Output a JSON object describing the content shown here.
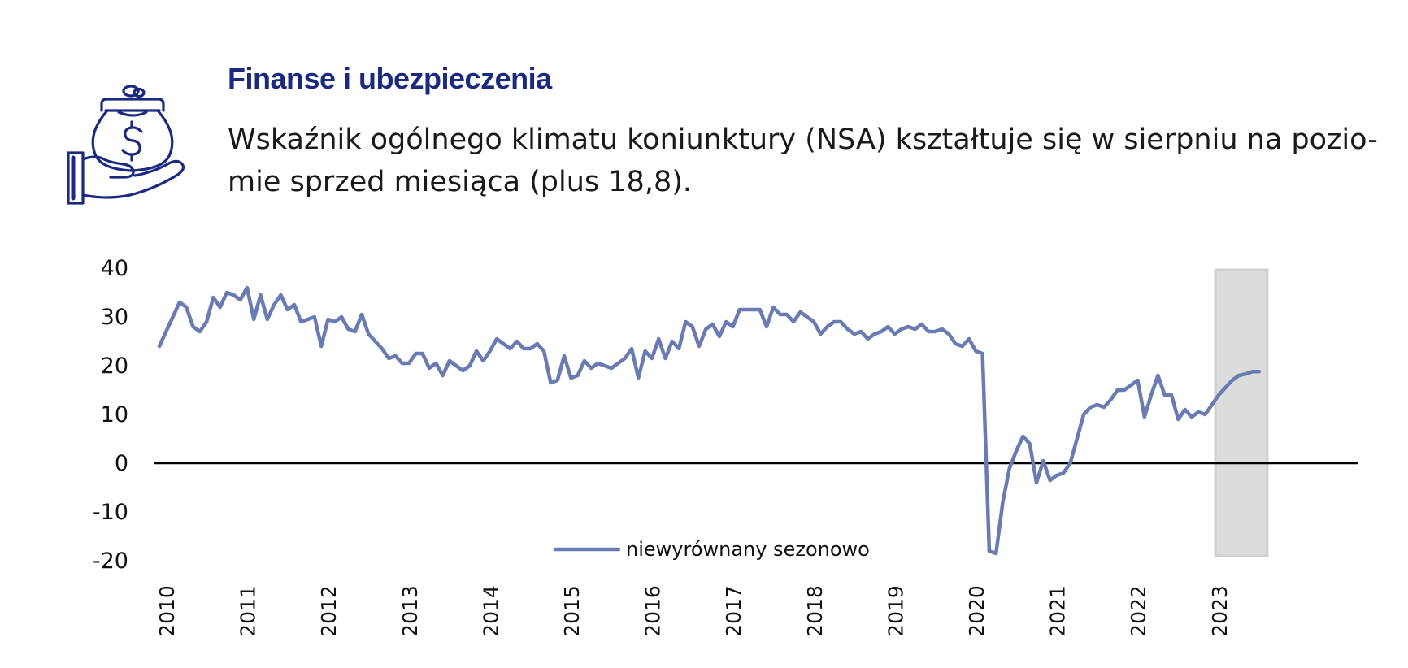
{
  "header": {
    "title": "Finanse i ubezpieczenia",
    "description": "Wskaźnik ogólnego klimatu koniunktury (NSA) kształtuje się w sierpniu na pozio- mie sprzed miesiąca (plus 18,8).",
    "icon": "money-bag-in-hand-icon"
  },
  "colors": {
    "title": "#1b2a80",
    "icon": "#1b2a80",
    "series": "#6a7ab3",
    "forecast_band": "#dcdcdc",
    "zero_line": "#000000"
  },
  "chart_data": {
    "type": "line",
    "title": "",
    "xlabel": "",
    "ylabel": "",
    "ylim": [
      -20,
      40
    ],
    "y_ticks": [
      "40",
      "30",
      "20",
      "10",
      "0",
      "-10",
      "-20"
    ],
    "x_ticks": [
      "2010",
      "2011",
      "2012",
      "2013",
      "2014",
      "2015",
      "2016",
      "2017",
      "2018",
      "2019",
      "2020",
      "2021",
      "2022",
      "2023"
    ],
    "legend": {
      "position": "bottom-center",
      "entries": [
        "niewyrównany sezonowo"
      ]
    },
    "highlight_period": {
      "from": "2023-02",
      "to": "2023-08"
    },
    "start_period": "2010-01",
    "series": [
      {
        "name": "niewyrównany sezonowo",
        "frequency": "monthly",
        "values": [
          24,
          27,
          30,
          33,
          32,
          28,
          27,
          29,
          34,
          32,
          35,
          34.5,
          33.5,
          36,
          29.5,
          34.5,
          29.5,
          32.5,
          34.5,
          31.5,
          32.5,
          29,
          29.5,
          30,
          24,
          29.5,
          29,
          30,
          27.5,
          27,
          30.5,
          26.5,
          25,
          23.5,
          21.5,
          22,
          20.5,
          20.5,
          22.5,
          22.5,
          19.5,
          20.5,
          18,
          21,
          20,
          19,
          20,
          23,
          21,
          23,
          25.5,
          24.5,
          23.5,
          25,
          23.5,
          23.5,
          24.5,
          23,
          16.5,
          17,
          22,
          17.5,
          18,
          21,
          19.5,
          20.5,
          20,
          19.5,
          20.5,
          21.5,
          23.5,
          17.5,
          23,
          21.5,
          25.5,
          21.5,
          25,
          23.5,
          29,
          28,
          24,
          27.5,
          28.5,
          26,
          29,
          28,
          31.5,
          31.5,
          31.5,
          31.5,
          28,
          32,
          30.5,
          30.5,
          29,
          31,
          30,
          29,
          26.5,
          28,
          29,
          29,
          27.5,
          26.5,
          27,
          25.5,
          26.5,
          27,
          28,
          26.5,
          27.5,
          28,
          27.5,
          28.5,
          27,
          27,
          27.5,
          26.5,
          24.5,
          24,
          25.5,
          23,
          22.5,
          -18,
          -18.5,
          -8,
          -1,
          2.5,
          5.5,
          4,
          -4,
          0.5,
          -3.5,
          -2.5,
          -2,
          0,
          5,
          10,
          11.5,
          12,
          11.5,
          13,
          15,
          15,
          16,
          17,
          9.5,
          14,
          18,
          14,
          14,
          9,
          11,
          9.5,
          10.5,
          10,
          12,
          14,
          15.5,
          17,
          18,
          18.3,
          18.8,
          18.8
        ]
      }
    ]
  }
}
